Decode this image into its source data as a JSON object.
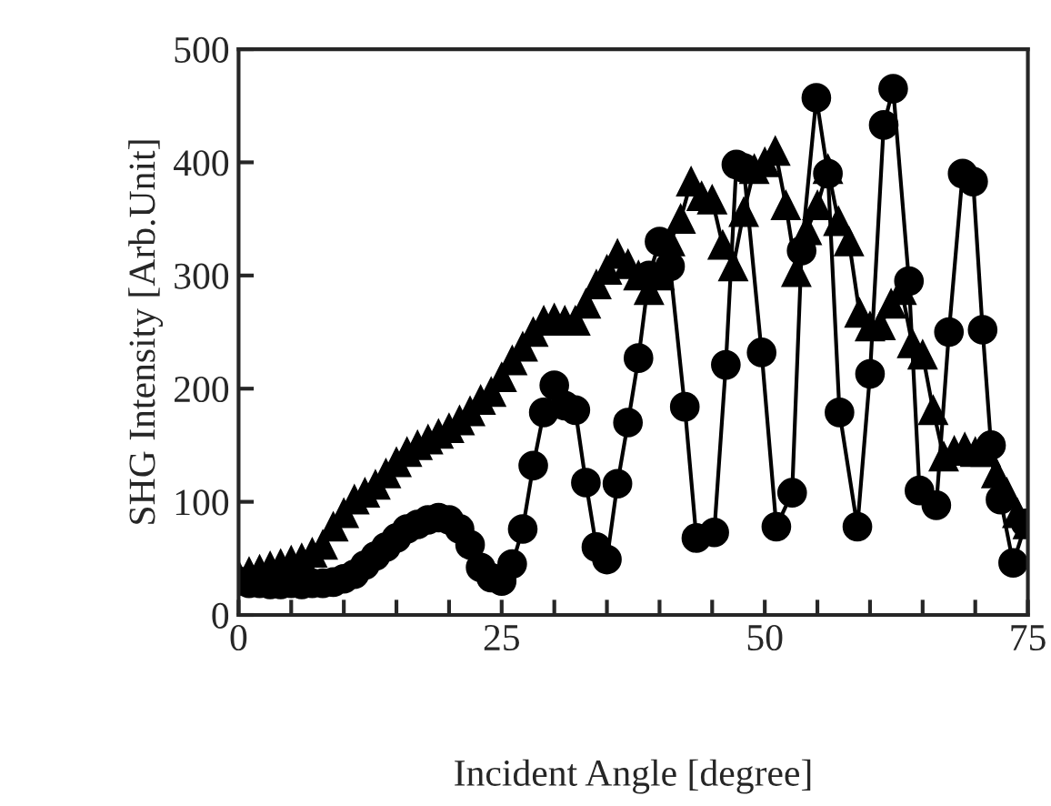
{
  "chart_data": {
    "type": "line",
    "xlabel": "Incident Angle [degree]",
    "ylabel": "SHG Intensity [Arb.Unit]",
    "xlim": [
      0,
      75
    ],
    "ylim": [
      0,
      500
    ],
    "xticks": [
      0,
      {
        "value": 5,
        "label": null
      },
      {
        "value": 10,
        "label": null
      },
      {
        "value": 15,
        "label": null
      },
      {
        "value": 20,
        "label": null
      },
      25,
      {
        "value": 30,
        "label": null
      },
      {
        "value": 35,
        "label": null
      },
      {
        "value": 40,
        "label": null
      },
      {
        "value": 45,
        "label": null
      },
      50,
      {
        "value": 55,
        "label": null
      },
      {
        "value": 60,
        "label": null
      },
      {
        "value": 65,
        "label": null
      },
      {
        "value": 70,
        "label": null
      },
      75
    ],
    "yticks": [
      0,
      100,
      200,
      300,
      400,
      500
    ],
    "grid": false,
    "legend": false,
    "line_style": "solid",
    "series": [
      {
        "color": "#000000",
        "marker": "circle",
        "x": [
          0,
          1,
          2,
          3,
          4,
          5,
          6,
          7,
          8,
          9,
          10,
          11,
          12,
          13,
          14,
          15,
          16,
          17,
          18,
          19,
          20,
          21,
          22,
          23,
          24,
          25,
          26,
          27,
          28,
          29,
          30,
          31,
          32,
          33,
          34,
          35,
          36,
          37,
          38,
          39,
          40,
          41,
          42.4,
          43.5,
          45.2,
          46.3,
          47.3,
          48,
          49.7,
          51.1,
          52.6,
          53.5,
          54.9,
          56,
          57.1,
          58.8,
          60,
          61.3,
          62.2,
          63.7,
          64.7,
          66.3,
          67.5,
          68.8,
          69.8,
          70.7,
          71.5,
          72.4,
          73.6,
          74.8
        ],
        "values": [
          30,
          28,
          28,
          27,
          27,
          28,
          27,
          28,
          28,
          29,
          32,
          36,
          44,
          52,
          60,
          68,
          76,
          80,
          84,
          86,
          84,
          76,
          62,
          42,
          33,
          30,
          45,
          76,
          132,
          179,
          203,
          185,
          181,
          117,
          60,
          49,
          116,
          170,
          227,
          300,
          330,
          308,
          184,
          68,
          73,
          221,
          398,
          395,
          232,
          78,
          108,
          322,
          457,
          390,
          179,
          78,
          213,
          433,
          465,
          295,
          110,
          97,
          250,
          390,
          383,
          252,
          150,
          102,
          46,
          81
        ]
      },
      {
        "color": "#000000",
        "marker": "triangle",
        "x": [
          0,
          1,
          2,
          3,
          4,
          5,
          6,
          7,
          8,
          9,
          10,
          11,
          12,
          13,
          14,
          15,
          16,
          17,
          18,
          19,
          20,
          21,
          22,
          23,
          24,
          25,
          26,
          27,
          28,
          29,
          30,
          31,
          32,
          33,
          34,
          35,
          36,
          37,
          38,
          39,
          40,
          41,
          42,
          43,
          44,
          45,
          46,
          47,
          48,
          49,
          50,
          51,
          52,
          53,
          54,
          55,
          56,
          57,
          58,
          59,
          60,
          61,
          62,
          63,
          64,
          65,
          66,
          67,
          68,
          69,
          70,
          71,
          72,
          73,
          74,
          75
        ],
        "values": [
          35,
          38,
          40,
          43,
          45,
          48,
          50,
          55,
          62,
          78,
          90,
          102,
          108,
          115,
          125,
          135,
          144,
          150,
          155,
          160,
          165,
          172,
          180,
          190,
          197,
          210,
          225,
          237,
          250,
          260,
          262,
          260,
          260,
          275,
          292,
          305,
          319,
          310,
          300,
          287,
          300,
          330,
          350,
          383,
          370,
          367,
          327,
          308,
          356,
          394,
          400,
          410,
          362,
          303,
          340,
          362,
          394,
          348,
          330,
          267,
          255,
          256,
          275,
          287,
          240,
          230,
          181,
          140,
          145,
          148,
          144,
          144,
          125,
          108,
          90,
          80
        ]
      }
    ]
  }
}
